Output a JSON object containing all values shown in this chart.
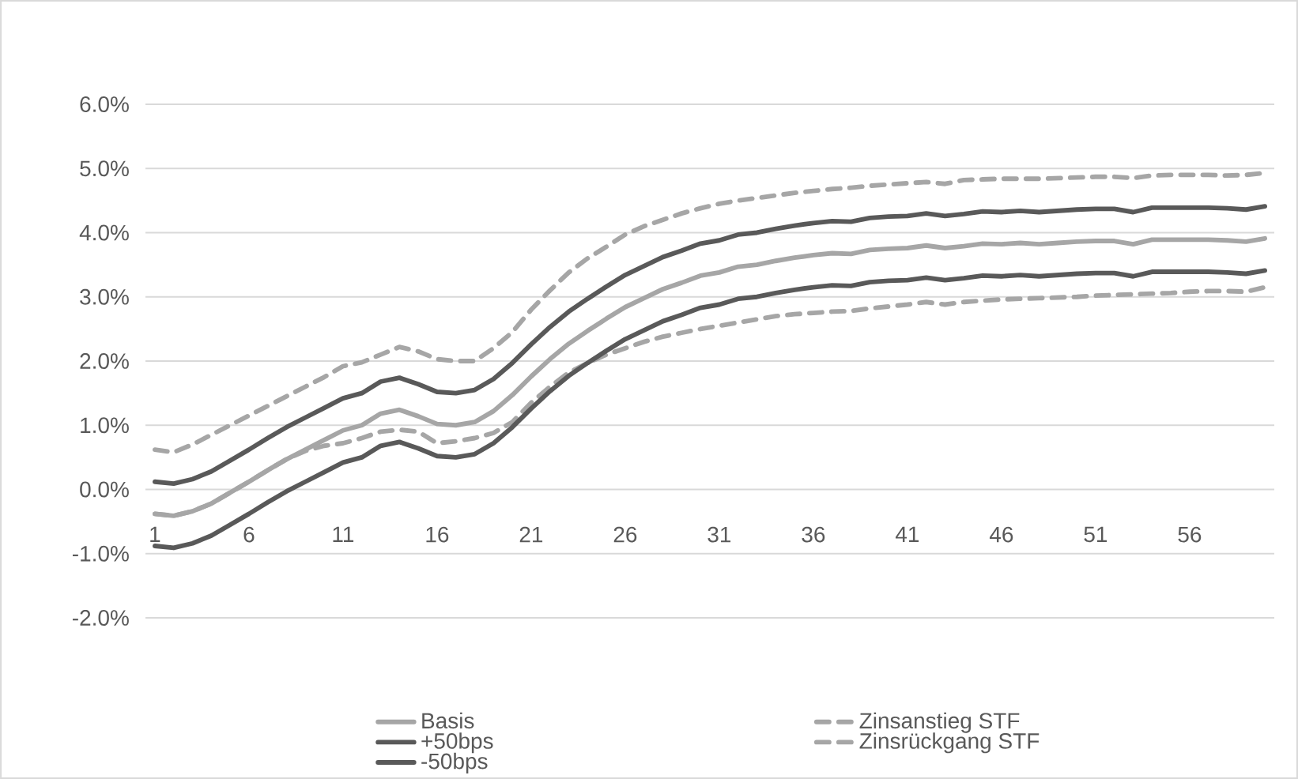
{
  "chart_data": {
    "type": "line",
    "categories": [
      "1",
      null,
      null,
      null,
      null,
      "6",
      null,
      null,
      null,
      null,
      "11",
      null,
      null,
      null,
      null,
      "16",
      null,
      null,
      null,
      null,
      "21",
      null,
      null,
      null,
      null,
      "26",
      null,
      null,
      null,
      null,
      "31",
      null,
      null,
      null,
      null,
      "36",
      null,
      null,
      null,
      null,
      "41",
      null,
      null,
      null,
      null,
      "46",
      null,
      null,
      null,
      null,
      "51",
      null,
      null,
      null,
      null,
      "56",
      null,
      null,
      null,
      null
    ],
    "series": [
      {
        "name": "Basis",
        "color": "#a6a6a6",
        "line_style": "solid",
        "values": [
          -0.38,
          -0.41,
          -0.34,
          -0.22,
          -0.05,
          0.12,
          0.3,
          0.47,
          0.62,
          0.77,
          0.92,
          1.0,
          1.18,
          1.24,
          1.14,
          1.02,
          1.0,
          1.05,
          1.22,
          1.47,
          1.76,
          2.03,
          2.27,
          2.47,
          2.66,
          2.84,
          2.98,
          3.12,
          3.22,
          3.33,
          3.38,
          3.47,
          3.5,
          3.56,
          3.61,
          3.65,
          3.68,
          3.67,
          3.73,
          3.75,
          3.76,
          3.8,
          3.76,
          3.79,
          3.83,
          3.82,
          3.84,
          3.82,
          3.84,
          3.86,
          3.87,
          3.87,
          3.82,
          3.89,
          3.89,
          3.89,
          3.89,
          3.88,
          3.86,
          3.91
        ]
      },
      {
        "name": "Zinsanstieg STF",
        "color": "#a6a6a6",
        "line_style": "dashed",
        "values": [
          0.62,
          0.58,
          0.7,
          0.85,
          1.0,
          1.15,
          1.3,
          1.45,
          1.6,
          1.75,
          1.92,
          1.98,
          2.1,
          2.22,
          2.15,
          2.03,
          2.0,
          2.0,
          2.2,
          2.45,
          2.8,
          3.1,
          3.38,
          3.6,
          3.78,
          3.97,
          4.1,
          4.2,
          4.3,
          4.38,
          4.45,
          4.5,
          4.54,
          4.58,
          4.62,
          4.65,
          4.68,
          4.7,
          4.73,
          4.75,
          4.77,
          4.79,
          4.76,
          4.82,
          4.83,
          4.84,
          4.84,
          4.84,
          4.85,
          4.86,
          4.87,
          4.87,
          4.85,
          4.89,
          4.9,
          4.9,
          4.9,
          4.89,
          4.9,
          4.93
        ]
      },
      {
        "name": "+50bps",
        "color": "#595959",
        "line_style": "solid",
        "values": [
          0.12,
          0.09,
          0.16,
          0.28,
          0.45,
          0.62,
          0.8,
          0.97,
          1.12,
          1.27,
          1.42,
          1.5,
          1.68,
          1.74,
          1.64,
          1.52,
          1.5,
          1.55,
          1.72,
          1.97,
          2.26,
          2.53,
          2.77,
          2.97,
          3.16,
          3.34,
          3.48,
          3.62,
          3.72,
          3.83,
          3.88,
          3.97,
          4.0,
          4.06,
          4.11,
          4.15,
          4.18,
          4.17,
          4.23,
          4.25,
          4.26,
          4.3,
          4.26,
          4.29,
          4.33,
          4.32,
          4.34,
          4.32,
          4.34,
          4.36,
          4.37,
          4.37,
          4.32,
          4.39,
          4.39,
          4.39,
          4.39,
          4.38,
          4.36,
          4.41
        ]
      },
      {
        "name": "Zinsrückgang STF",
        "color": "#a6a6a6",
        "line_style": "dashed",
        "values": [
          -0.38,
          -0.41,
          -0.34,
          -0.22,
          -0.05,
          0.12,
          0.3,
          0.47,
          0.6,
          0.68,
          0.72,
          0.8,
          0.9,
          0.93,
          0.9,
          0.72,
          0.75,
          0.8,
          0.88,
          1.05,
          1.35,
          1.6,
          1.82,
          1.97,
          2.1,
          2.2,
          2.3,
          2.38,
          2.44,
          2.5,
          2.55,
          2.6,
          2.65,
          2.7,
          2.73,
          2.75,
          2.77,
          2.78,
          2.82,
          2.85,
          2.88,
          2.92,
          2.88,
          2.92,
          2.94,
          2.96,
          2.97,
          2.98,
          2.99,
          3.0,
          3.02,
          3.03,
          3.04,
          3.05,
          3.06,
          3.08,
          3.09,
          3.09,
          3.08,
          3.15
        ]
      },
      {
        "name": "-50bps",
        "color": "#595959",
        "line_style": "solid",
        "values": [
          -0.88,
          -0.91,
          -0.84,
          -0.72,
          -0.55,
          -0.38,
          -0.2,
          -0.03,
          0.12,
          0.27,
          0.42,
          0.5,
          0.68,
          0.74,
          0.64,
          0.52,
          0.5,
          0.55,
          0.72,
          0.97,
          1.26,
          1.53,
          1.77,
          1.97,
          2.16,
          2.34,
          2.48,
          2.62,
          2.72,
          2.83,
          2.88,
          2.97,
          3.0,
          3.06,
          3.11,
          3.15,
          3.18,
          3.17,
          3.23,
          3.25,
          3.26,
          3.3,
          3.26,
          3.29,
          3.33,
          3.32,
          3.34,
          3.32,
          3.34,
          3.36,
          3.37,
          3.37,
          3.32,
          3.39,
          3.39,
          3.39,
          3.39,
          3.38,
          3.36,
          3.41
        ]
      }
    ],
    "ylim": [
      -2,
      6
    ],
    "yticks": [
      {
        "value": -2,
        "label": "-2.0%"
      },
      {
        "value": -1,
        "label": "-1.0%"
      },
      {
        "value": 0,
        "label": "0.0%"
      },
      {
        "value": 1,
        "label": "1.0%"
      },
      {
        "value": 2,
        "label": "2.0%"
      },
      {
        "value": 3,
        "label": "3.0%"
      },
      {
        "value": 4,
        "label": "4.0%"
      },
      {
        "value": 5,
        "label": "5.0%"
      },
      {
        "value": 6,
        "label": "6.0%"
      }
    ],
    "grid": "y",
    "legend": "bottom"
  }
}
